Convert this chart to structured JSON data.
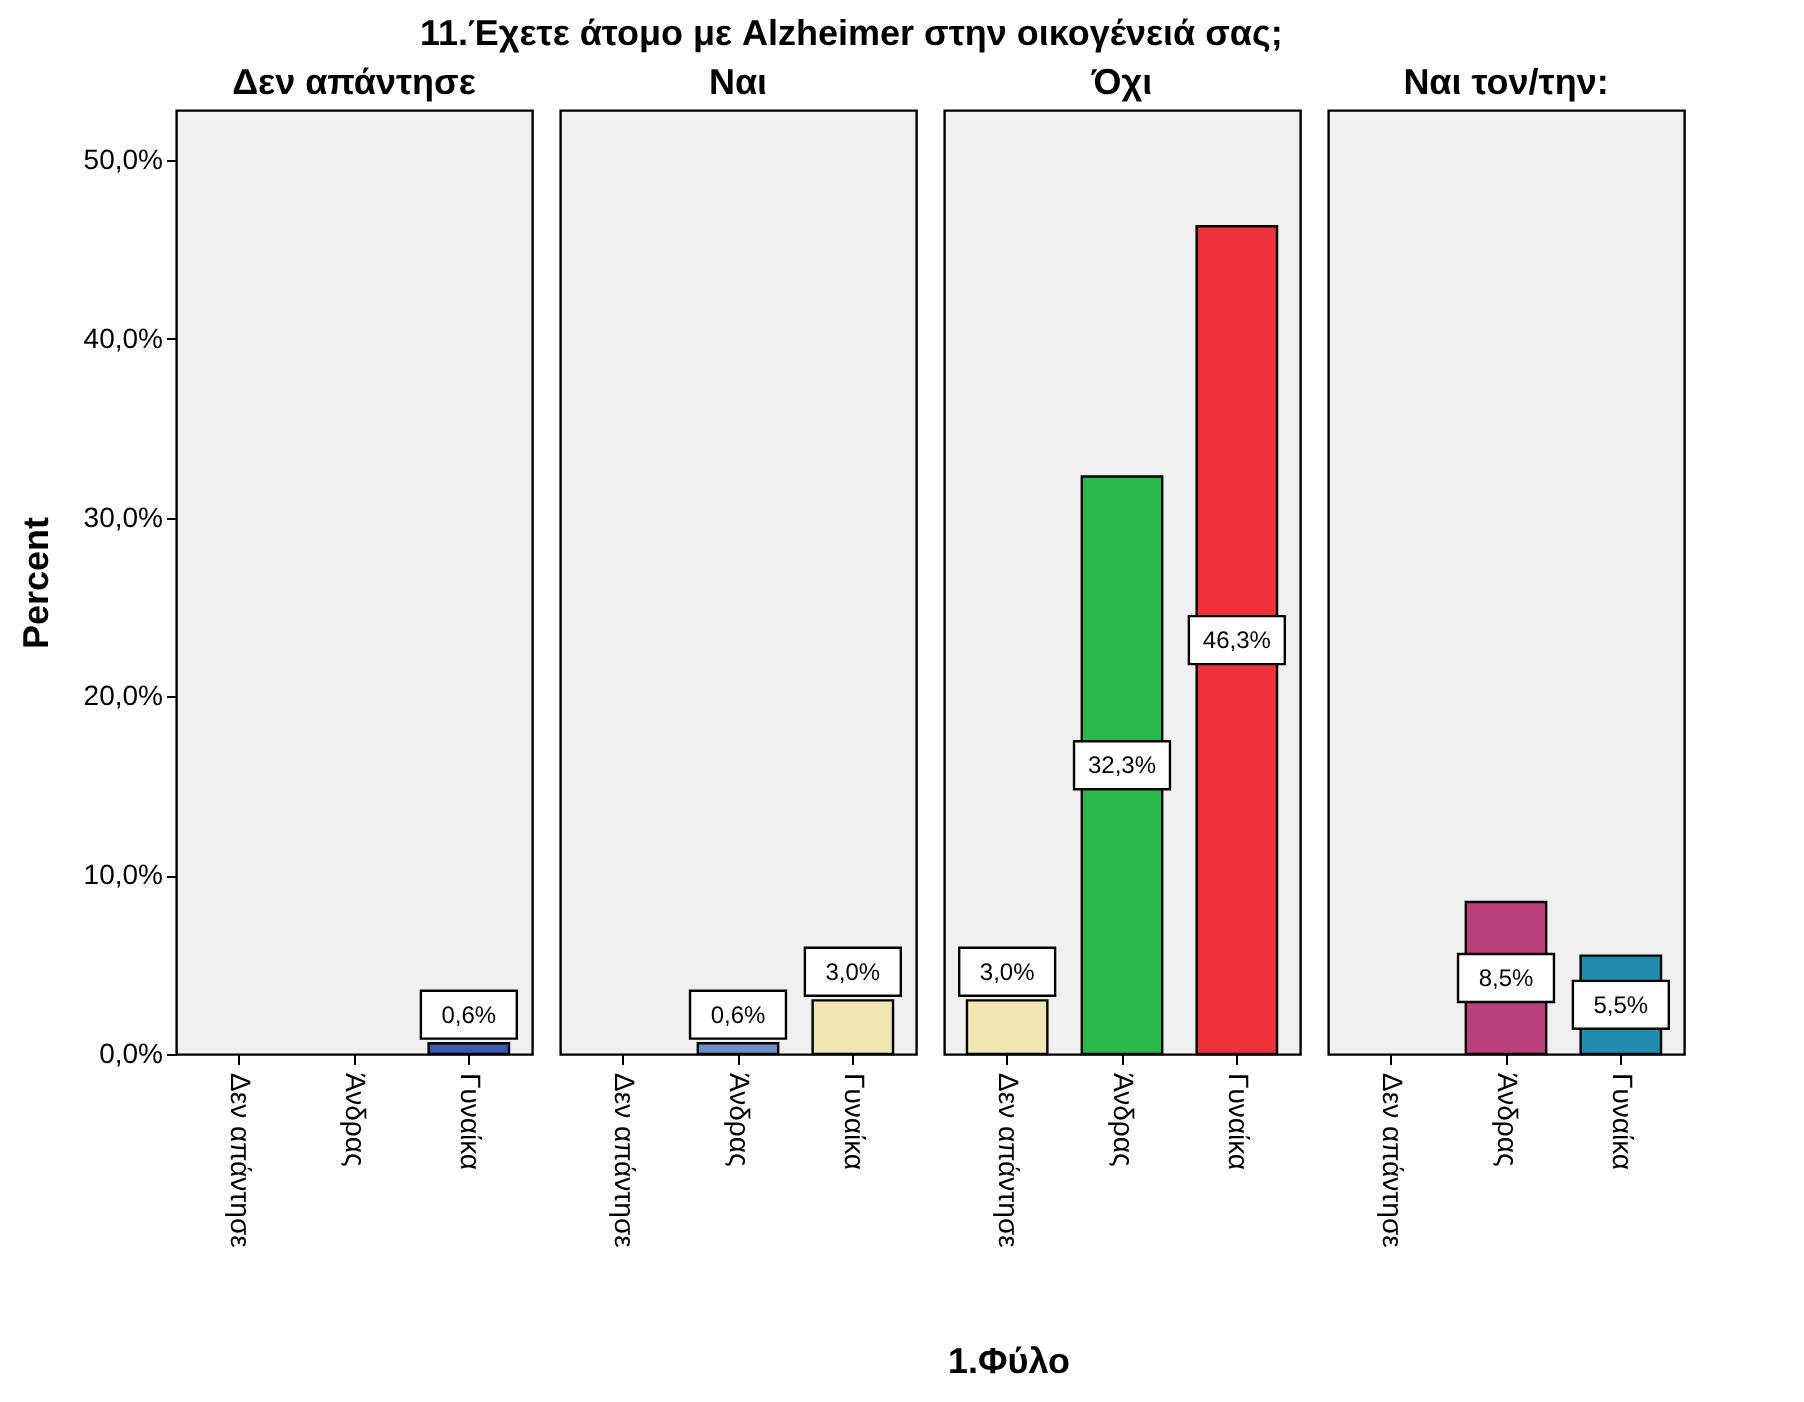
{
  "chart_data": [
    {
      "type": "bar",
      "title": "Δεν απάντησε",
      "annotations": [
        "11.Έχετε άτομο με Alzheimer στην οικογένειά σας;"
      ],
      "ylabel": "Percent",
      "categories": [
        "Δεν απάντησε",
        "Άνδρας",
        "Γυναίκα"
      ],
      "values": [
        null,
        null,
        0.6
      ],
      "colors": [
        null,
        null,
        "#3e58ac"
      ],
      "value_labels": [
        null,
        null,
        "0,6%"
      ],
      "ylim": [
        0,
        52.8
      ],
      "yticks": [
        {
          "value": 0,
          "label": "0,0%"
        },
        {
          "value": 10,
          "label": "10,0%"
        },
        {
          "value": 20,
          "label": "20,0%"
        },
        {
          "value": 30,
          "label": "30,0%"
        },
        {
          "value": 40,
          "label": "40,0%"
        },
        {
          "value": 50,
          "label": "50,0%"
        }
      ]
    },
    {
      "type": "bar",
      "title": "Ναι",
      "categories": [
        "Δεν απάντησε",
        "Άνδρας",
        "Γυναίκα"
      ],
      "values": [
        null,
        0.6,
        3.0
      ],
      "colors": [
        null,
        "#6f8fc8",
        "#efe6b4"
      ],
      "value_labels": [
        null,
        "0,6%",
        "3,0%"
      ],
      "ylim": [
        0,
        52.8
      ],
      "tick_labels": "x"
    },
    {
      "type": "bar",
      "title": "Όχι",
      "xlabel": "1.Φύλο",
      "categories": [
        "Δεν απάντησε",
        "Άνδρας",
        "Γυναίκα"
      ],
      "values": [
        3.0,
        32.3,
        46.3
      ],
      "colors": [
        "#efe6b4",
        "#2db84b",
        "#ef333a"
      ],
      "value_labels": [
        "3,0%",
        "32,3%",
        "46,3%"
      ],
      "ylim": [
        0,
        52.8
      ],
      "tick_labels": "x"
    },
    {
      "type": "bar",
      "title": "Ναι τον/την:",
      "categories": [
        "Δεν απάντησε",
        "Άνδρας",
        "Γυναίκα"
      ],
      "values": [
        null,
        8.5,
        5.5
      ],
      "colors": [
        null,
        "#b8407d",
        "#238bad"
      ],
      "value_labels": [
        null,
        "8,5%",
        "5,5%"
      ],
      "ylim": [
        0,
        52.8
      ],
      "tick_labels": "x"
    }
  ]
}
